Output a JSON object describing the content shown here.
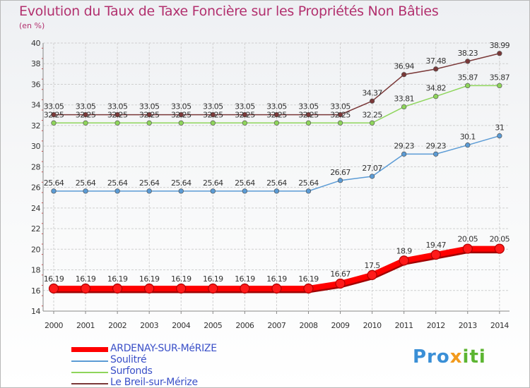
{
  "chart_data": {
    "type": "line",
    "title": "Evolution du Taux de Taxe Foncière sur les Propriétés Non Bâties",
    "ylabel": "(en %)",
    "xlabel": "",
    "ylim": [
      14,
      40
    ],
    "yticks": [
      14,
      16,
      18,
      20,
      22,
      24,
      26,
      28,
      30,
      32,
      34,
      36,
      38,
      40
    ],
    "categories": [
      "2000",
      "2001",
      "2002",
      "2003",
      "2004",
      "2005",
      "2006",
      "2007",
      "2008",
      "2009",
      "2010",
      "2011",
      "2012",
      "2013",
      "2014"
    ],
    "grid": true,
    "legend_position": "bottom-left",
    "series": [
      {
        "name": "ARDENAY-SUR-MéRIZE",
        "color": "#ff0000",
        "emphasis": true,
        "values": [
          16.19,
          16.19,
          16.19,
          16.19,
          16.19,
          16.19,
          16.19,
          16.19,
          16.19,
          16.67,
          17.5,
          18.9,
          19.47,
          20.05,
          20.05
        ],
        "labels": [
          "16.19",
          "16.19",
          "16.19",
          "16.19",
          "16.19",
          "16.19",
          "16.19",
          "16.19",
          "16.19",
          "16.67",
          "17.5",
          "18.9",
          "19.47",
          "20.05",
          "20.05"
        ]
      },
      {
        "name": "Soulitré",
        "color": "#5b9bd5",
        "emphasis": false,
        "values": [
          25.64,
          25.64,
          25.64,
          25.64,
          25.64,
          25.64,
          25.64,
          25.64,
          25.64,
          26.67,
          27.07,
          29.23,
          29.23,
          30.1,
          31
        ],
        "labels": [
          "25.64",
          "25.64",
          "25.64",
          "25.64",
          "25.64",
          "25.64",
          "25.64",
          "25.64",
          "25.64",
          "26.67",
          "27.07",
          "29.23",
          "29.23",
          "30.1",
          "31"
        ]
      },
      {
        "name": "Surfonds",
        "color": "#8ed55b",
        "emphasis": false,
        "values": [
          32.25,
          32.25,
          32.25,
          32.25,
          32.25,
          32.25,
          32.25,
          32.25,
          32.25,
          32.25,
          32.25,
          33.81,
          34.82,
          35.87,
          35.87
        ],
        "labels": [
          "32.25",
          "32.25",
          "32.25",
          "32.25",
          "32.25",
          "32.25",
          "32.25",
          "32.25",
          "32.25",
          "32.25",
          "32.25",
          "33.81",
          "34.82",
          "35.87",
          "35.87"
        ]
      },
      {
        "name": "Le Breil-sur-Mérize",
        "color": "#7a3838",
        "emphasis": false,
        "values": [
          33.05,
          33.05,
          33.05,
          33.05,
          33.05,
          33.05,
          33.05,
          33.05,
          33.05,
          33.05,
          34.37,
          36.94,
          37.48,
          38.23,
          38.99
        ],
        "labels": [
          "33.05",
          "33.05",
          "33.05",
          "33.05",
          "33.05",
          "33.05",
          "33.05",
          "33.05",
          "33.05",
          "33.05",
          "34.37",
          "36.94",
          "37.48",
          "38.23",
          "38.99"
        ]
      }
    ]
  },
  "branding": {
    "logo_parts": [
      "Pro",
      "x",
      "iti"
    ]
  }
}
